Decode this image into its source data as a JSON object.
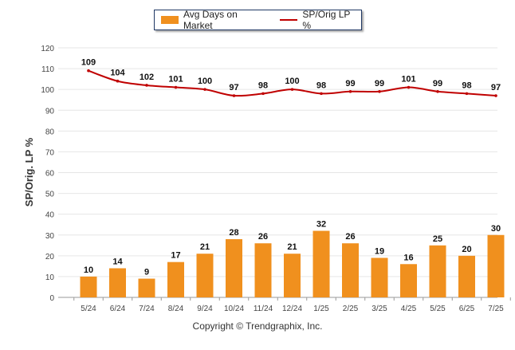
{
  "chart_data": {
    "type": "bar",
    "categories": [
      "5/24",
      "6/24",
      "7/24",
      "8/24",
      "9/24",
      "10/24",
      "11/24",
      "12/24",
      "1/25",
      "2/25",
      "3/25",
      "4/25",
      "5/25",
      "6/25",
      "7/25"
    ],
    "series": [
      {
        "name": "Avg Days on Market",
        "type": "bar",
        "color": "#f0901e",
        "values": [
          10,
          14,
          9,
          17,
          21,
          28,
          26,
          21,
          32,
          26,
          19,
          16,
          25,
          20,
          30
        ]
      },
      {
        "name": "SP/Orig LP %",
        "type": "line",
        "color": "#c00000",
        "values": [
          109,
          104,
          102,
          101,
          100,
          97,
          98,
          100,
          98,
          99,
          99,
          101,
          99,
          98,
          97
        ]
      }
    ],
    "ylabel": "SP/Orig. LP %",
    "ylim": [
      0,
      120
    ],
    "yticks": [
      0,
      10,
      20,
      30,
      40,
      50,
      60,
      70,
      80,
      90,
      100,
      110,
      120
    ],
    "grid": true,
    "legend_position": "top-center"
  },
  "footer": {
    "copyright": "Copyright © Trendgraphix, Inc."
  }
}
